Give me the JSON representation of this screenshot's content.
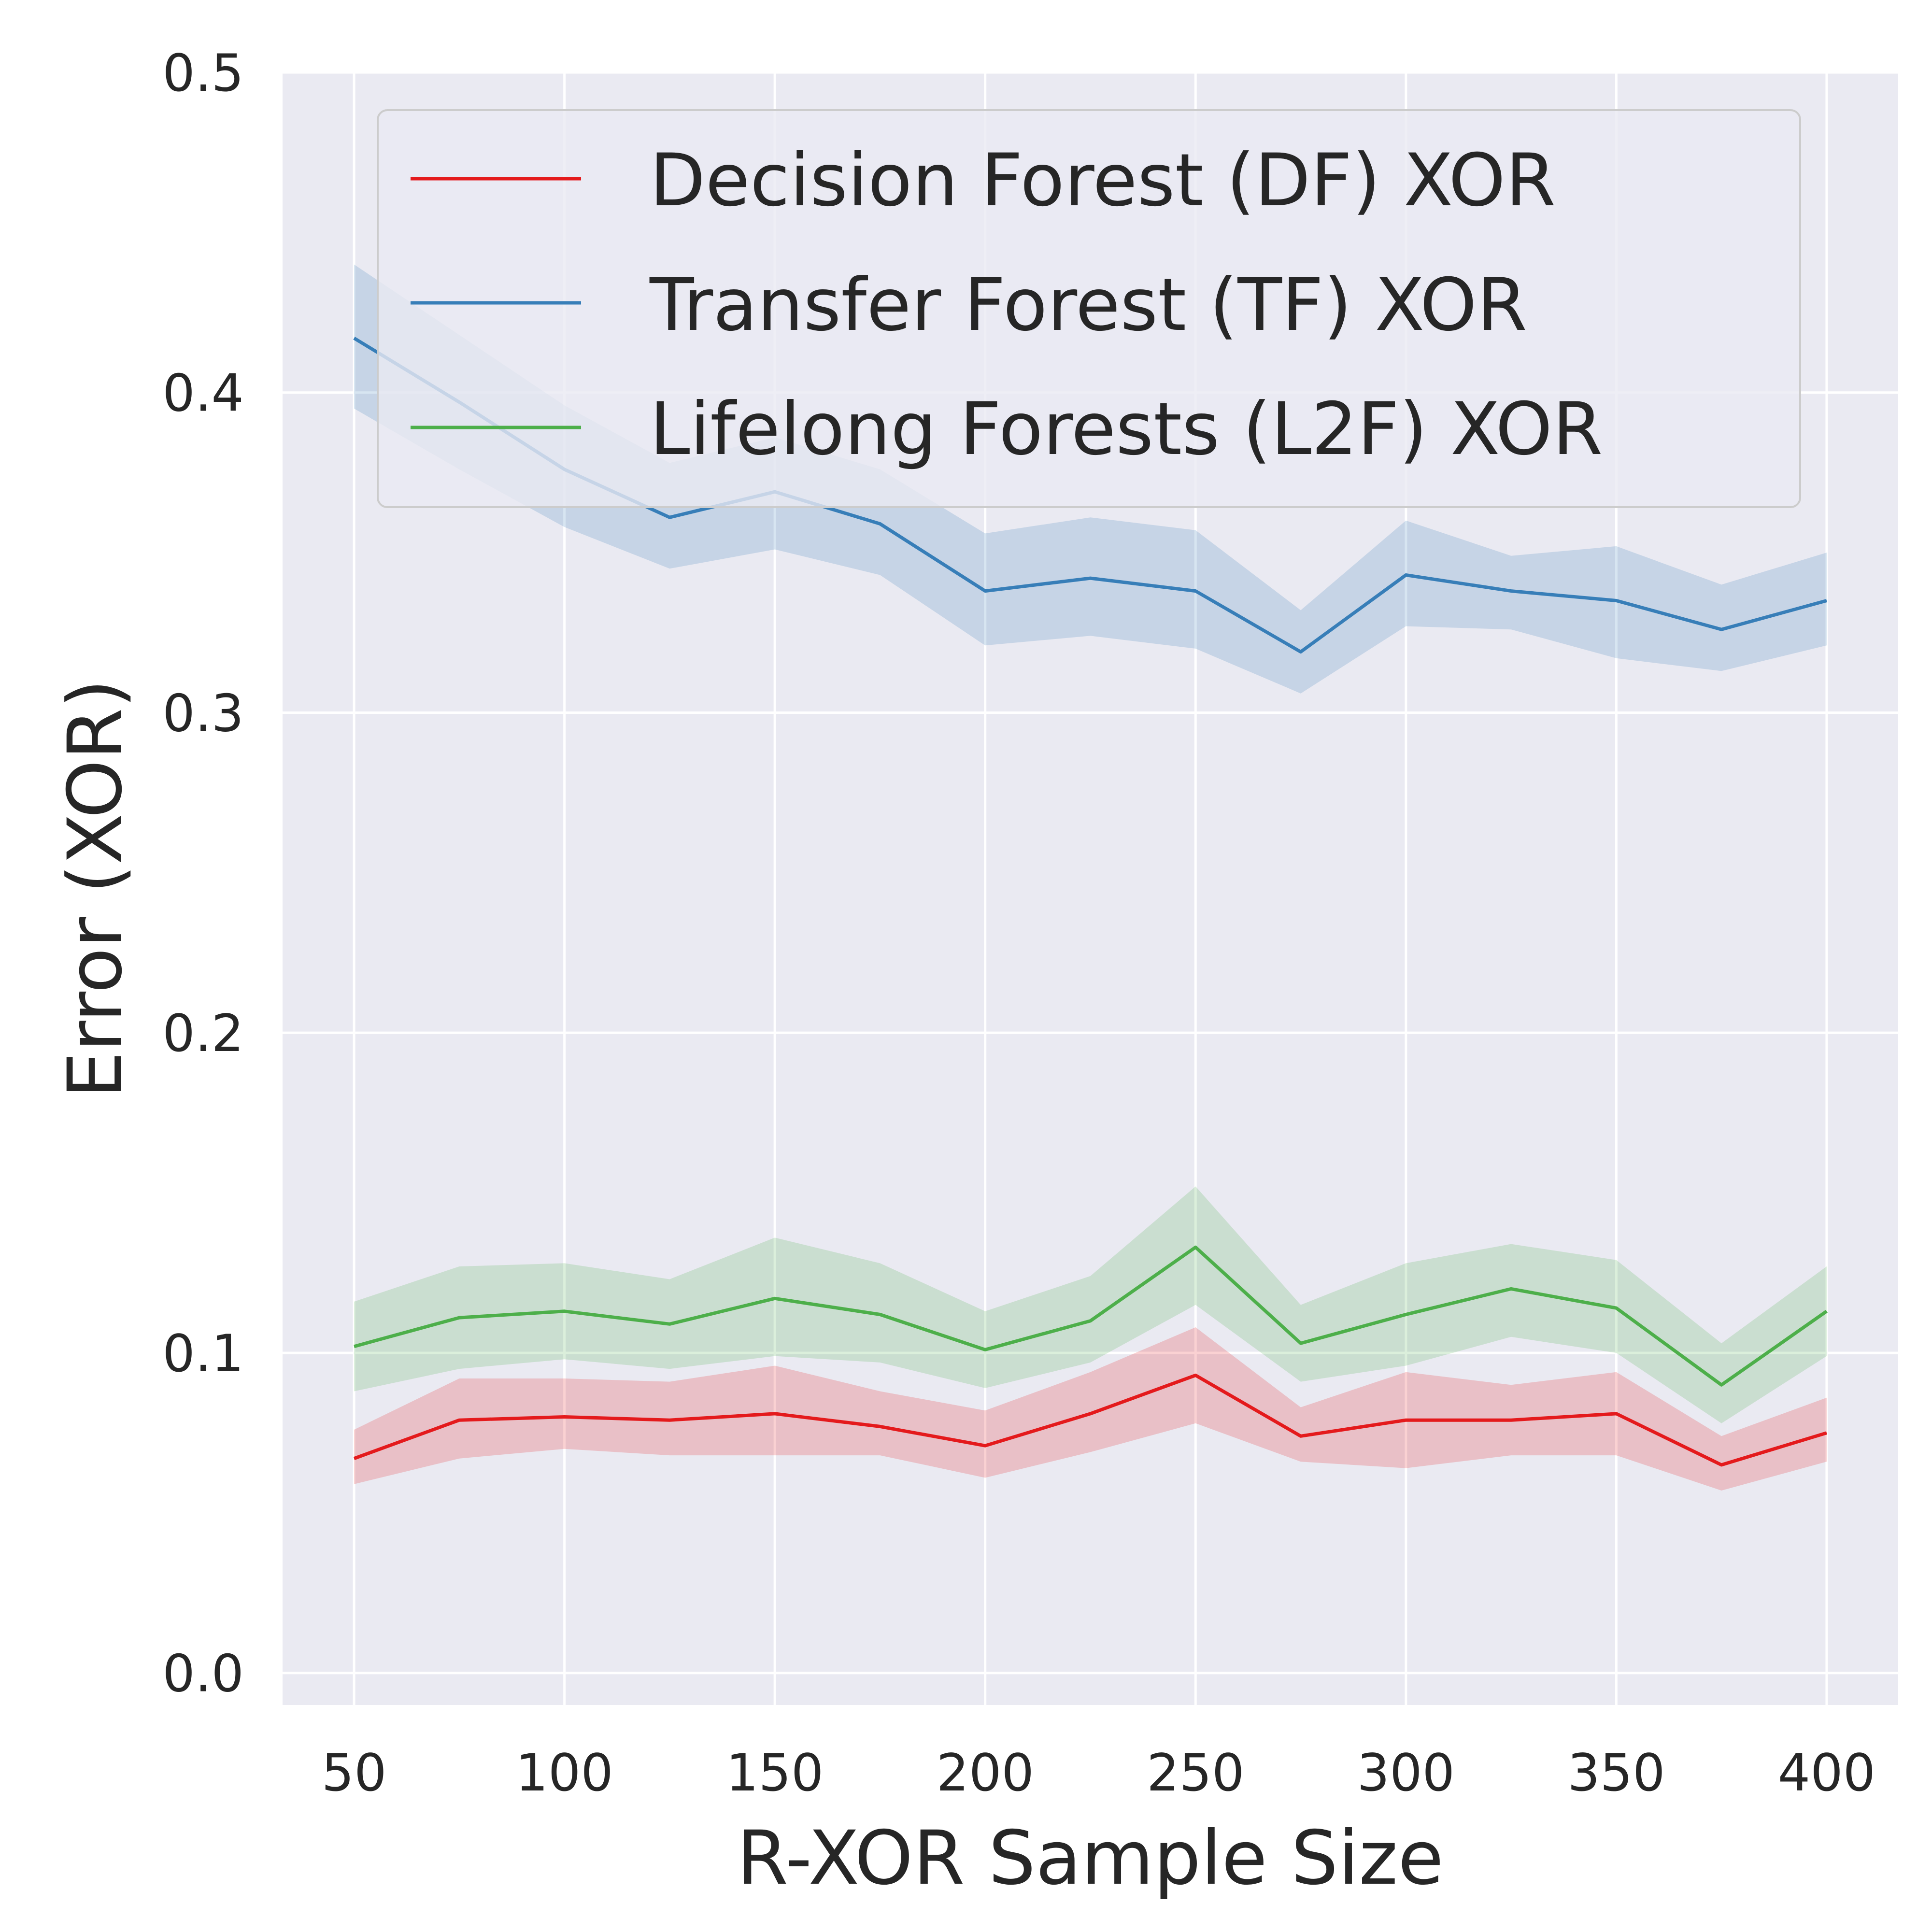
{
  "chart_data": {
    "type": "line",
    "title": "",
    "xlabel": "R-XOR Sample Size",
    "ylabel": "Error (XOR)",
    "xlim": [
      33,
      417
    ],
    "ylim": [
      -0.01,
      0.5
    ],
    "xticks": [
      50,
      100,
      150,
      200,
      250,
      300,
      350,
      400
    ],
    "yticks": [
      0.0,
      0.1,
      0.2,
      0.3,
      0.4,
      0.5
    ],
    "xtick_labels": [
      "50",
      "100",
      "150",
      "200",
      "250",
      "300",
      "350",
      "400"
    ],
    "ytick_labels": [
      "0.0",
      "0.1",
      "0.2",
      "0.3",
      "0.4",
      "0.5"
    ],
    "grid": true,
    "legend_position": "top-right",
    "x": [
      50,
      75,
      100,
      125,
      150,
      175,
      200,
      225,
      250,
      275,
      300,
      325,
      350,
      375,
      400
    ],
    "series": [
      {
        "name": "Decision Forest (DF) XOR",
        "color": "#e41a1c",
        "values": [
          0.067,
          0.079,
          0.08,
          0.079,
          0.081,
          0.077,
          0.071,
          0.081,
          0.093,
          0.074,
          0.079,
          0.079,
          0.081,
          0.065,
          0.075
        ],
        "lower": [
          0.059,
          0.067,
          0.07,
          0.068,
          0.068,
          0.068,
          0.061,
          0.069,
          0.078,
          0.066,
          0.064,
          0.068,
          0.068,
          0.057,
          0.066
        ],
        "upper": [
          0.076,
          0.092,
          0.092,
          0.091,
          0.096,
          0.088,
          0.082,
          0.094,
          0.108,
          0.083,
          0.094,
          0.09,
          0.094,
          0.074,
          0.086
        ]
      },
      {
        "name": "Transfer Forest (TF) XOR",
        "color": "#377eb8",
        "values": [
          0.417,
          0.397,
          0.376,
          0.361,
          0.369,
          0.359,
          0.338,
          0.342,
          0.338,
          0.319,
          0.343,
          0.338,
          0.335,
          0.326,
          0.335
        ],
        "lower": [
          0.395,
          0.376,
          0.358,
          0.345,
          0.351,
          0.343,
          0.321,
          0.324,
          0.32,
          0.306,
          0.327,
          0.326,
          0.317,
          0.313,
          0.321
        ],
        "upper": [
          0.44,
          0.418,
          0.396,
          0.378,
          0.386,
          0.376,
          0.356,
          0.361,
          0.357,
          0.332,
          0.36,
          0.349,
          0.352,
          0.34,
          0.35
        ]
      },
      {
        "name": "Lifelong Forests (L2F) XOR",
        "color": "#4daf4a",
        "values": [
          0.102,
          0.111,
          0.113,
          0.109,
          0.117,
          0.112,
          0.101,
          0.11,
          0.133,
          0.103,
          0.112,
          0.12,
          0.114,
          0.09,
          0.113
        ],
        "lower": [
          0.088,
          0.095,
          0.098,
          0.095,
          0.099,
          0.097,
          0.089,
          0.097,
          0.115,
          0.091,
          0.096,
          0.105,
          0.1,
          0.078,
          0.099
        ],
        "upper": [
          0.116,
          0.127,
          0.128,
          0.123,
          0.136,
          0.128,
          0.113,
          0.124,
          0.152,
          0.115,
          0.128,
          0.134,
          0.129,
          0.103,
          0.127
        ]
      }
    ]
  }
}
